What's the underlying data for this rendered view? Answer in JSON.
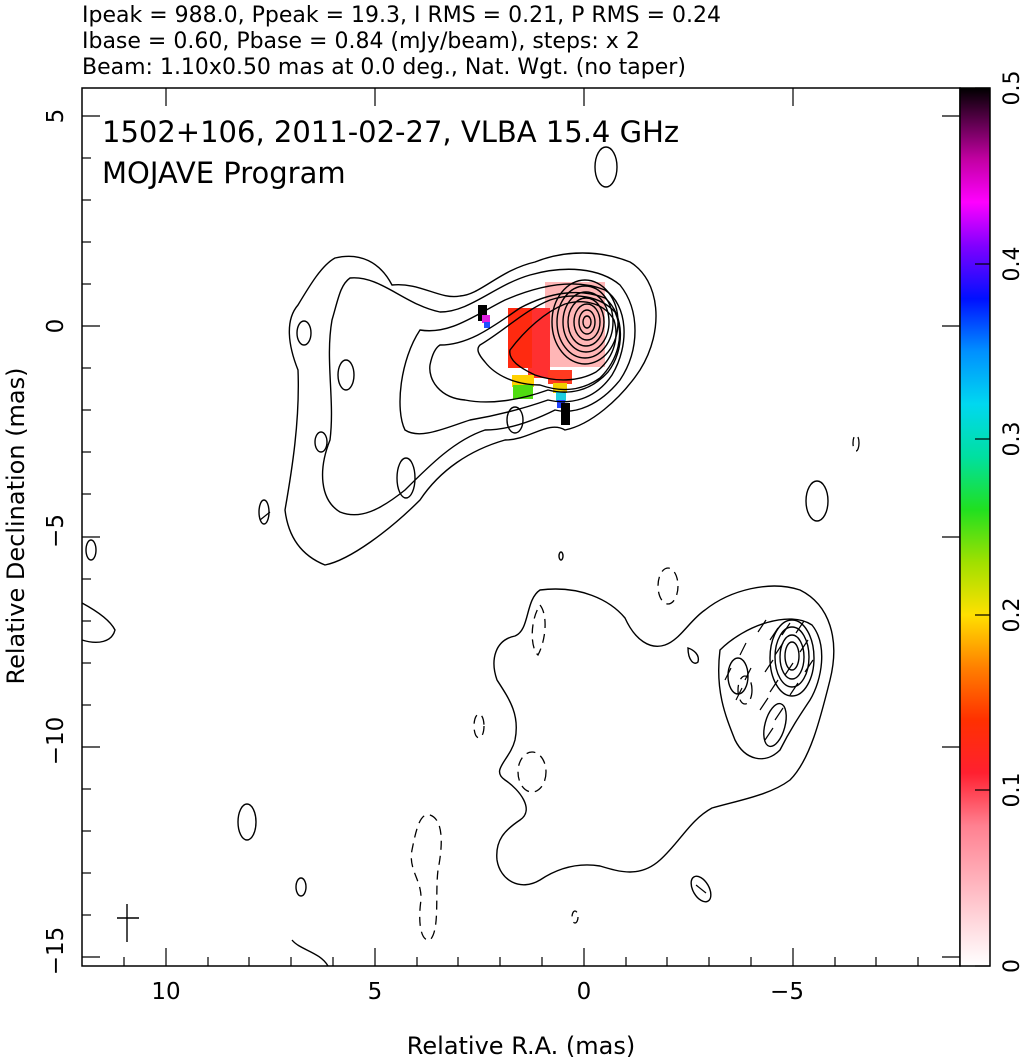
{
  "chart_data": {
    "type": "contour",
    "header": {
      "line1": "Ipeak = 988.0, Ppeak = 19.3, I RMS = 0.21, P RMS = 0.24",
      "line2": "Ibase = 0.60, Pbase = 0.84 (mJy/beam), steps: x 2",
      "line3": "Beam: 1.10x0.50 mas at 0.0 deg., Nat. Wgt. (no taper)"
    },
    "annotation": {
      "line1": "1502+106, 2011-02-27, VLBA 15.4 GHz",
      "line2": "MOJAVE Program"
    },
    "xlabel": "Relative R.A. (mas)",
    "ylabel": "Relative Declination (mas)",
    "xlim": [
      12,
      -9
    ],
    "ylim": [
      -15.2,
      5.8
    ],
    "xticks": [
      10,
      5,
      0,
      -5
    ],
    "xtick_labels": [
      "10",
      "5",
      "0",
      "−5"
    ],
    "yticks": [
      5,
      0,
      -5,
      -10,
      -15
    ],
    "ytick_labels": [
      "5",
      "0",
      "−5",
      "−10",
      "−15"
    ],
    "colorbar": {
      "range": [
        0,
        0.5
      ],
      "ticks": [
        0,
        0.1,
        0.2,
        0.3,
        0.4,
        0.5
      ],
      "tick_labels": [
        "0",
        "0.1",
        "0.2",
        "0.3",
        "0.4",
        "0.5"
      ]
    },
    "core": {
      "x": 0,
      "y": 0.2
    },
    "secondary_component": {
      "x": -4.9,
      "y": -7.9
    },
    "beam_marker": {
      "x": 11,
      "y": -14.2,
      "major": 1.1,
      "minor": 0.5,
      "pa_deg": 0.0
    }
  },
  "colors": {
    "contour": "#000000",
    "polarization_low": "#ffb0b0",
    "polarization_mid": "#ff2020"
  }
}
